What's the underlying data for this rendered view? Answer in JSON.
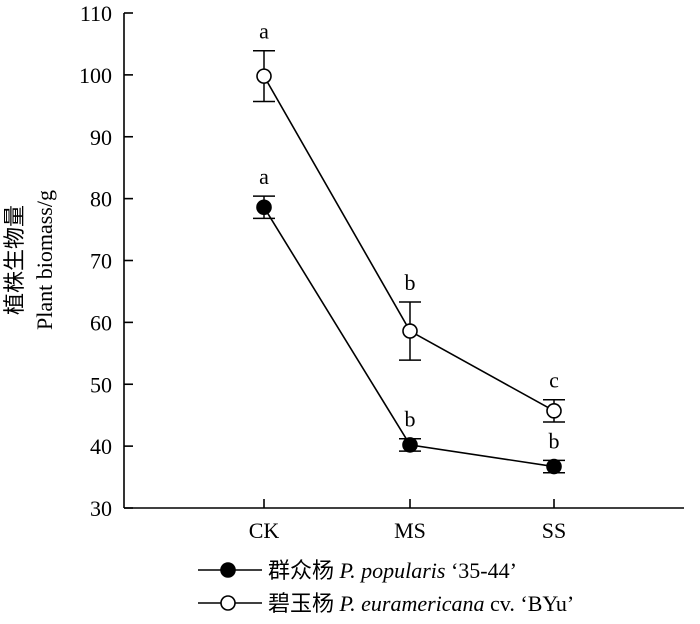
{
  "chart_data": {
    "type": "line",
    "ylabel_line1": "植株生物量",
    "ylabel_line2": "Plant biomass/g",
    "ylim": [
      30,
      110
    ],
    "yticks": [
      30,
      40,
      50,
      60,
      70,
      80,
      90,
      100,
      110
    ],
    "categories": [
      "CK",
      "MS",
      "SS"
    ],
    "series": [
      {
        "marker": "filled-circle",
        "legend_cn": "群众杨",
        "legend_species": "P. popularis",
        "legend_suffix": "‘35-44’",
        "values": [
          78.6,
          40.2,
          36.7
        ],
        "errors": [
          1.8,
          1.0,
          1.0
        ],
        "sig_labels": [
          "a",
          "b",
          "b"
        ],
        "color": "#000000"
      },
      {
        "marker": "open-circle",
        "legend_cn": "碧玉杨",
        "legend_species": "P. euramericana",
        "legend_suffix": "cv. ‘BYu’",
        "values": [
          99.8,
          58.6,
          45.7
        ],
        "errors": [
          4.1,
          4.7,
          1.8
        ],
        "sig_labels": [
          "a",
          "b",
          "c"
        ],
        "color": "#000000"
      }
    ],
    "grid": false
  }
}
